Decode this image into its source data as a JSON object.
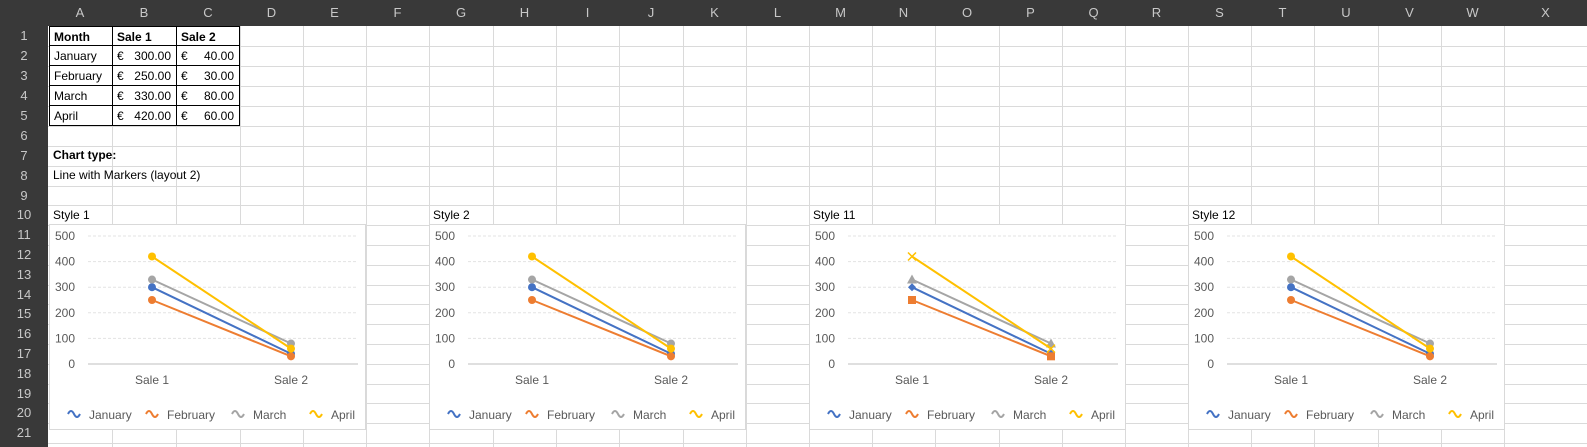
{
  "columns": [
    "A",
    "B",
    "C",
    "D",
    "E",
    "F",
    "G",
    "H",
    "I",
    "J",
    "K",
    "L",
    "M",
    "N",
    "O",
    "P",
    "Q",
    "R",
    "S",
    "T",
    "U",
    "V",
    "W",
    "X"
  ],
  "rows": [
    "1",
    "2",
    "3",
    "4",
    "5",
    "6",
    "7",
    "8",
    "9",
    "10",
    "11",
    "12",
    "13",
    "14",
    "15",
    "16",
    "17",
    "18",
    "19",
    "20",
    "21"
  ],
  "table": {
    "headers": [
      "Month",
      "Sale 1",
      "Sale 2"
    ],
    "currency": "€",
    "rows": [
      {
        "month": "January",
        "sale1": "300.00",
        "sale2": "40.00"
      },
      {
        "month": "February",
        "sale1": "250.00",
        "sale2": "30.00"
      },
      {
        "month": "March",
        "sale1": "330.00",
        "sale2": "80.00"
      },
      {
        "month": "April",
        "sale1": "420.00",
        "sale2": "60.00"
      }
    ]
  },
  "chart_type_label": "Chart type:",
  "chart_type_value": "Line with Markers (layout 2)",
  "styles": [
    "Style 1",
    "Style 2",
    "Style 11",
    "Style 12"
  ],
  "colors": {
    "January": "#4472c4",
    "February": "#ed7d31",
    "March": "#a5a5a5",
    "April": "#ffc000",
    "grid": "#e3e3e3",
    "axis_text": "#595959"
  },
  "chart_data": [
    {
      "type": "line",
      "categories": [
        "Sale 1",
        "Sale 2"
      ],
      "ylim": [
        0,
        500
      ],
      "yticks": [
        0,
        100,
        200,
        300,
        400,
        500
      ],
      "grid": true,
      "legend": "bottom",
      "markers": [
        "circle",
        "circle",
        "circle",
        "circle"
      ],
      "series": [
        {
          "name": "January",
          "values": [
            300,
            40
          ]
        },
        {
          "name": "February",
          "values": [
            250,
            30
          ]
        },
        {
          "name": "March",
          "values": [
            330,
            80
          ]
        },
        {
          "name": "April",
          "values": [
            420,
            60
          ]
        }
      ]
    },
    {
      "type": "line",
      "categories": [
        "Sale 1",
        "Sale 2"
      ],
      "ylim": [
        0,
        500
      ],
      "yticks": [
        0,
        100,
        200,
        300,
        400,
        500
      ],
      "grid": true,
      "legend": "bottom",
      "markers": [
        "circle",
        "circle",
        "circle",
        "circle"
      ],
      "series": [
        {
          "name": "January",
          "values": [
            300,
            40
          ]
        },
        {
          "name": "February",
          "values": [
            250,
            30
          ]
        },
        {
          "name": "March",
          "values": [
            330,
            80
          ]
        },
        {
          "name": "April",
          "values": [
            420,
            60
          ]
        }
      ]
    },
    {
      "type": "line",
      "categories": [
        "Sale 1",
        "Sale 2"
      ],
      "ylim": [
        0,
        500
      ],
      "yticks": [
        0,
        100,
        200,
        300,
        400,
        500
      ],
      "grid": true,
      "legend": "bottom",
      "markers": [
        "diamond",
        "square",
        "triangle",
        "x"
      ],
      "series": [
        {
          "name": "January",
          "values": [
            300,
            40
          ]
        },
        {
          "name": "February",
          "values": [
            250,
            30
          ]
        },
        {
          "name": "March",
          "values": [
            330,
            80
          ]
        },
        {
          "name": "April",
          "values": [
            420,
            60
          ]
        }
      ]
    },
    {
      "type": "line",
      "categories": [
        "Sale 1",
        "Sale 2"
      ],
      "ylim": [
        0,
        500
      ],
      "yticks": [
        0,
        100,
        200,
        300,
        400,
        500
      ],
      "grid": true,
      "legend": "bottom",
      "markers": [
        "circle",
        "circle",
        "circle",
        "circle"
      ],
      "series": [
        {
          "name": "January",
          "values": [
            300,
            40
          ]
        },
        {
          "name": "February",
          "values": [
            250,
            30
          ]
        },
        {
          "name": "March",
          "values": [
            330,
            80
          ]
        },
        {
          "name": "April",
          "values": [
            420,
            60
          ]
        }
      ]
    }
  ]
}
